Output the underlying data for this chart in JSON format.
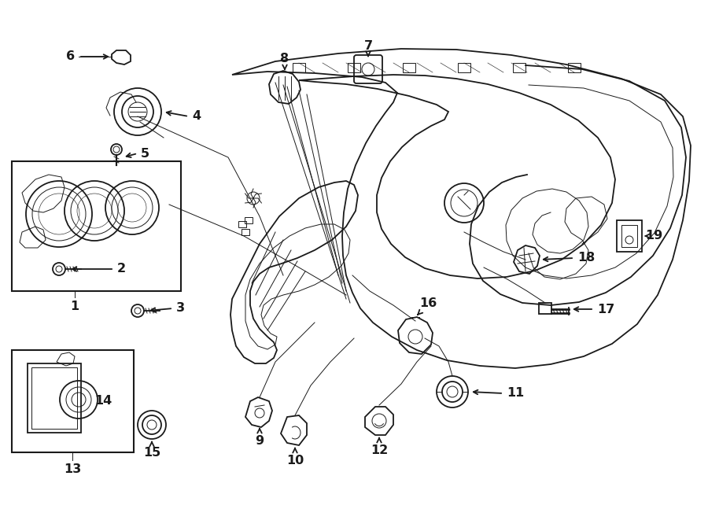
{
  "background_color": "#ffffff",
  "line_color": "#1a1a1a",
  "lw_main": 1.3,
  "lw_thin": 0.7,
  "figsize": [
    9.0,
    6.61
  ],
  "dpi": 100,
  "label_fs": 11.5
}
